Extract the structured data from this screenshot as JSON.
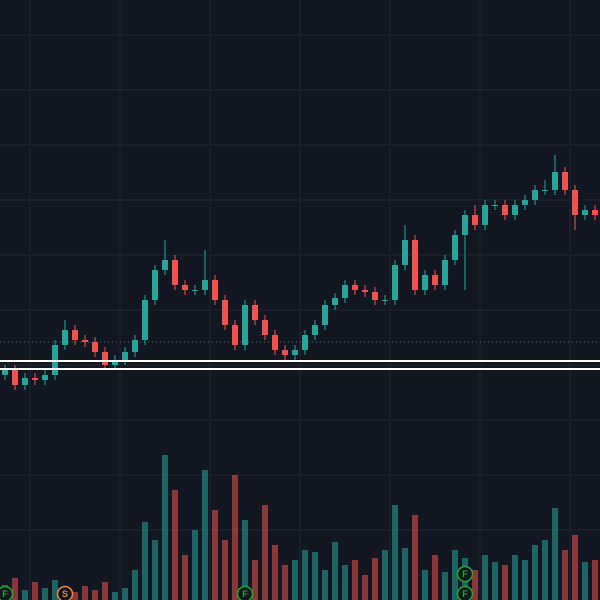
{
  "chart_data": {
    "type": "candlestick",
    "up_color": "#26a69a",
    "down_color": "#ef5350",
    "ylim": [
      0,
      600
    ],
    "volume_ylim": [
      0,
      150
    ],
    "open": [
      225,
      230,
      215,
      222,
      220,
      225,
      255,
      270,
      260,
      258,
      248,
      235,
      240,
      248,
      260,
      300,
      330,
      340,
      315,
      310,
      310,
      320,
      300,
      275,
      255,
      295,
      280,
      265,
      250,
      245,
      250,
      265,
      275,
      295,
      302,
      315,
      310,
      308,
      300,
      300,
      335,
      360,
      310,
      325,
      315,
      340,
      365,
      385,
      375,
      395,
      395,
      385,
      395,
      400,
      410,
      410,
      428,
      410,
      385,
      390
    ],
    "high": [
      235,
      235,
      227,
      227,
      230,
      260,
      280,
      275,
      265,
      263,
      253,
      245,
      253,
      265,
      305,
      335,
      360,
      345,
      320,
      315,
      350,
      325,
      305,
      280,
      300,
      300,
      285,
      270,
      255,
      255,
      270,
      280,
      300,
      307,
      320,
      320,
      315,
      313,
      305,
      340,
      375,
      365,
      330,
      330,
      345,
      370,
      390,
      395,
      400,
      400,
      400,
      400,
      405,
      415,
      420,
      445,
      433,
      415,
      395,
      395
    ],
    "low": [
      220,
      210,
      210,
      215,
      215,
      220,
      250,
      255,
      253,
      243,
      230,
      230,
      235,
      243,
      255,
      295,
      325,
      310,
      305,
      305,
      305,
      295,
      270,
      250,
      250,
      275,
      260,
      245,
      240,
      240,
      245,
      260,
      270,
      290,
      297,
      305,
      303,
      295,
      295,
      295,
      330,
      305,
      305,
      310,
      310,
      335,
      310,
      370,
      370,
      390,
      380,
      380,
      390,
      395,
      405,
      405,
      405,
      370,
      380,
      380
    ],
    "close": [
      230,
      215,
      222,
      220,
      225,
      255,
      270,
      260,
      258,
      248,
      235,
      240,
      248,
      260,
      300,
      330,
      340,
      315,
      310,
      310,
      320,
      300,
      275,
      255,
      295,
      280,
      265,
      250,
      245,
      250,
      265,
      275,
      295,
      302,
      315,
      310,
      308,
      300,
      300,
      335,
      360,
      310,
      325,
      315,
      340,
      365,
      385,
      375,
      395,
      395,
      385,
      395,
      400,
      410,
      410,
      428,
      410,
      385,
      390,
      385
    ],
    "volume": [
      15,
      22,
      10,
      18,
      12,
      20,
      12,
      8,
      14,
      10,
      18,
      8,
      12,
      30,
      78,
      60,
      145,
      110,
      45,
      70,
      130,
      90,
      60,
      125,
      80,
      40,
      95,
      55,
      35,
      40,
      50,
      48,
      30,
      58,
      35,
      40,
      25,
      42,
      50,
      95,
      52,
      85,
      30,
      45,
      28,
      50,
      42,
      30,
      45,
      38,
      35,
      45,
      40,
      55,
      60,
      92,
      50,
      65,
      38,
      40
    ],
    "price_lines": [
      239,
      231
    ],
    "dotted_line": 258,
    "events": [
      {
        "label": "F",
        "index": 0,
        "color": "#22ab22"
      },
      {
        "label": "S",
        "index": 6,
        "color": "#f0883e"
      },
      {
        "label": "F",
        "index": 24,
        "color": "#22ab22"
      },
      {
        "label": "F",
        "index": 46,
        "color": "#22ab22"
      },
      {
        "label": "F",
        "index": 46,
        "color": "#22ab22"
      }
    ]
  }
}
